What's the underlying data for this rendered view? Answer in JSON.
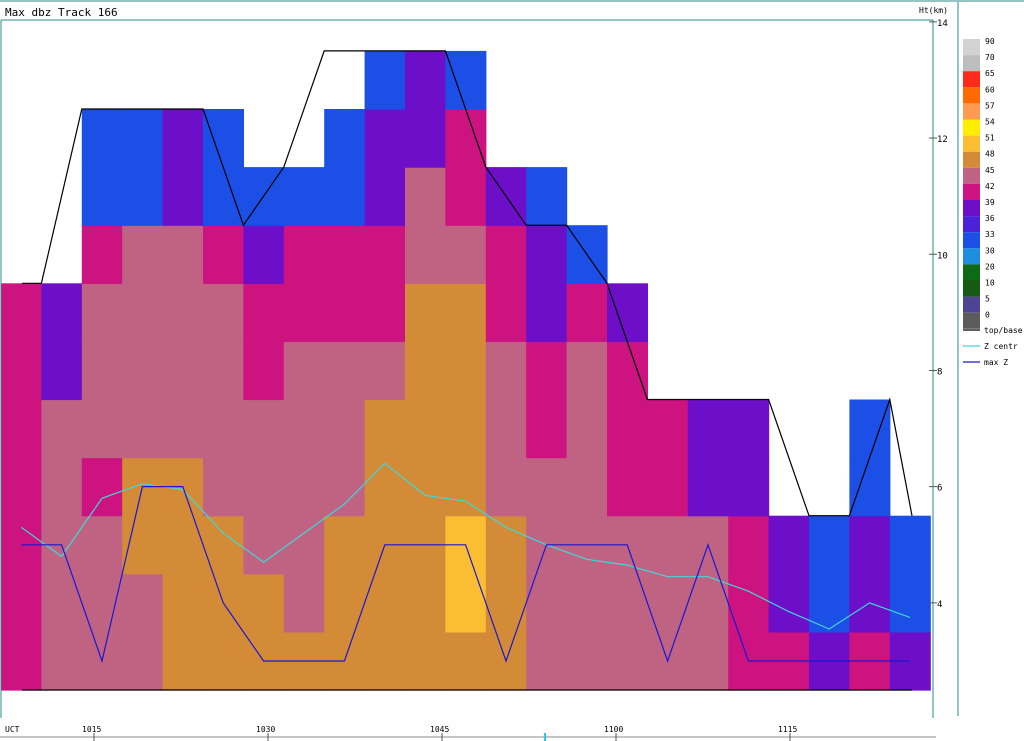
{
  "header": {
    "title": "Max dbz  Track 166",
    "height_unit": "Ht(km)"
  },
  "x_axis": {
    "label": "UCT",
    "ticks": [
      {
        "t": 1015,
        "label": "1015"
      },
      {
        "t": 1030,
        "label": "1030"
      },
      {
        "t": 1045,
        "label": "1045"
      },
      {
        "t": 1100,
        "label": "1100"
      },
      {
        "t": 1115,
        "label": "1115"
      }
    ]
  },
  "y_axis": {
    "ticks": [
      "4",
      "6",
      "8",
      "10",
      "12",
      "14"
    ],
    "ylim": [
      2.5,
      14
    ]
  },
  "colorbar": [
    {
      "label": "90",
      "color": "#d2d2d2"
    },
    {
      "label": "70",
      "color": "#bdbdbd"
    },
    {
      "label": "65",
      "color": "#ff2a1a"
    },
    {
      "label": "60",
      "color": "#ff6a00"
    },
    {
      "label": "57",
      "color": "#ff9a50"
    },
    {
      "label": "54",
      "color": "#ffee00"
    },
    {
      "label": "51",
      "color": "#fbbe33"
    },
    {
      "label": "48",
      "color": "#d38b37"
    },
    {
      "label": "45",
      "color": "#c06383"
    },
    {
      "label": "42",
      "color": "#cc137f"
    },
    {
      "label": "39",
      "color": "#6d0ec8"
    },
    {
      "label": "36",
      "color": "#4b22d9"
    },
    {
      "label": "33",
      "color": "#1c4fe6"
    },
    {
      "label": "30",
      "color": "#1e8ee0"
    },
    {
      "label": "20",
      "color": "#0e6a14"
    },
    {
      "label": "10",
      "color": "#175a14"
    },
    {
      "label": "5",
      "color": "#4e4494"
    },
    {
      "label": "0",
      "color": "#5c5c5c"
    }
  ],
  "legend": [
    {
      "label": "top/base",
      "color": "#000000"
    },
    {
      "label": "Z centr",
      "color": "#40d8d8"
    },
    {
      "label": "max Z",
      "color": "#1818d0"
    }
  ],
  "chart_data": {
    "type": "heatmap",
    "title": "Max dbz  Track 166",
    "ylabel": "Ht(km)",
    "xlabel": "UCT",
    "ylim": [
      2.5,
      14
    ],
    "y_levels": [
      [
        2.5,
        3.5
      ],
      [
        3.5,
        4.5
      ],
      [
        4.5,
        5.5
      ],
      [
        5.5,
        6.5
      ],
      [
        6.5,
        7.5
      ],
      [
        7.5,
        8.5
      ],
      [
        8.5,
        9.5
      ],
      [
        9.5,
        10.5
      ],
      [
        10.5,
        11.5
      ],
      [
        11.5,
        12.5
      ],
      [
        12.5,
        13.5
      ]
    ],
    "columns": [
      {
        "cells": [
          42,
          42,
          42,
          42,
          42,
          42,
          42
        ]
      },
      {
        "cells": [
          45,
          45,
          45,
          45,
          45,
          39,
          39
        ]
      },
      {
        "cells": [
          45,
          45,
          45,
          42,
          45,
          45,
          45,
          42,
          33,
          33
        ]
      },
      {
        "cells": [
          45,
          45,
          48,
          48,
          45,
          45,
          45,
          45,
          33,
          33
        ]
      },
      {
        "cells": [
          48,
          48,
          48,
          48,
          45,
          45,
          45,
          45,
          39,
          39
        ]
      },
      {
        "cells": [
          48,
          48,
          48,
          45,
          45,
          45,
          45,
          42,
          33,
          33
        ]
      },
      {
        "cells": [
          48,
          48,
          45,
          45,
          45,
          42,
          42,
          39,
          33
        ]
      },
      {
        "cells": [
          48,
          45,
          45,
          45,
          45,
          45,
          42,
          42,
          33
        ]
      },
      {
        "cells": [
          48,
          48,
          48,
          45,
          45,
          45,
          42,
          42,
          33,
          33
        ]
      },
      {
        "cells": [
          48,
          48,
          48,
          48,
          48,
          45,
          42,
          42,
          39,
          39,
          33
        ]
      },
      {
        "cells": [
          48,
          48,
          48,
          48,
          48,
          48,
          48,
          45,
          45,
          39,
          39
        ]
      },
      {
        "cells": [
          48,
          51,
          51,
          48,
          48,
          48,
          48,
          45,
          42,
          42,
          33
        ]
      },
      {
        "cells": [
          48,
          48,
          48,
          45,
          45,
          45,
          42,
          42,
          39
        ]
      },
      {
        "cells": [
          45,
          45,
          45,
          45,
          42,
          42,
          39,
          39,
          33
        ]
      },
      {
        "cells": [
          45,
          45,
          45,
          45,
          45,
          45,
          42,
          33
        ]
      },
      {
        "cells": [
          45,
          45,
          45,
          42,
          42,
          42,
          39
        ]
      },
      {
        "cells": [
          45,
          45,
          45,
          42,
          42
        ]
      },
      {
        "cells": [
          45,
          45,
          45,
          39,
          39
        ]
      },
      {
        "cells": [
          42,
          42,
          42,
          39,
          39
        ]
      },
      {
        "cells": [
          42,
          39,
          39
        ]
      },
      {
        "cells": [
          39,
          33,
          33
        ]
      },
      {
        "cells": [
          42,
          39,
          39,
          33,
          33
        ]
      },
      {
        "cells": [
          39,
          33,
          33
        ]
      }
    ],
    "series": [
      {
        "name": "top/base",
        "values": [
          9.5,
          9.5,
          12.5,
          12.5,
          12.5,
          12.5,
          10.5,
          11.5,
          13.5,
          13.5,
          13.5,
          13.5,
          11.5,
          10.5,
          10.5,
          9.5,
          7.5,
          7.5,
          7.5,
          7.5,
          5.5,
          5.5,
          7.5,
          5.5
        ]
      },
      {
        "name": "Z centr",
        "values": [
          5.3,
          4.8,
          5.8,
          6.05,
          5.95,
          5.2,
          4.7,
          5.2,
          5.7,
          6.4,
          5.85,
          5.75,
          5.3,
          5.0,
          4.75,
          4.65,
          4.45,
          4.45,
          4.2,
          3.85,
          3.55,
          4.0,
          3.75
        ]
      },
      {
        "name": "max Z",
        "values": [
          5.0,
          5.0,
          3.0,
          6.0,
          6.0,
          4.0,
          3.0,
          3.0,
          3.0,
          5.0,
          5.0,
          5.0,
          3.0,
          5.0,
          5.0,
          5.0,
          3.0,
          5.0,
          3.0,
          3.0,
          3.0,
          3.0,
          3.0
        ]
      }
    ],
    "base": 2.5,
    "grid": false,
    "legend_position": "right"
  }
}
